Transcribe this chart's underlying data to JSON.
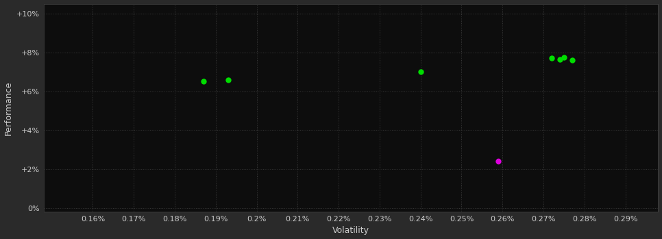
{
  "background_color": "#1a1a1a",
  "plot_bg_color": "#0d0d0d",
  "outer_bg_color": "#2a2a2a",
  "grid_color": "#3a3a3a",
  "text_color": "#cccccc",
  "xlabel": "Volatility",
  "ylabel": "Performance",
  "xlim": [
    0.00148,
    0.00298
  ],
  "ylim": [
    -0.002,
    0.105
  ],
  "xticks": [
    0.0016,
    0.0017,
    0.0018,
    0.0019,
    0.002,
    0.0021,
    0.0022,
    0.0023,
    0.0024,
    0.0025,
    0.0026,
    0.0027,
    0.0028,
    0.0029
  ],
  "yticks": [
    0.0,
    0.02,
    0.04,
    0.06,
    0.08,
    0.1
  ],
  "green_points": [
    [
      0.00187,
      0.065
    ],
    [
      0.00193,
      0.066
    ],
    [
      0.0024,
      0.07
    ],
    [
      0.00272,
      0.077
    ],
    [
      0.00274,
      0.0765
    ],
    [
      0.00275,
      0.0775
    ],
    [
      0.00277,
      0.076
    ]
  ],
  "magenta_points": [
    [
      0.00259,
      0.024
    ]
  ],
  "point_color_green": "#00dd00",
  "point_color_magenta": "#dd00dd",
  "marker_size": 6
}
